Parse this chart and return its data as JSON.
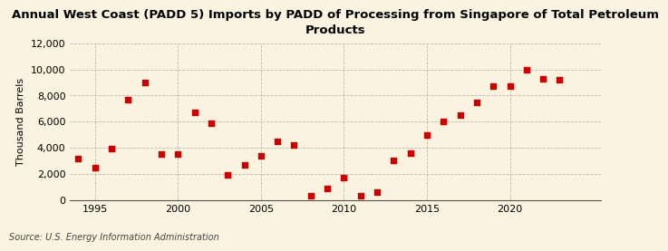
{
  "title": "Annual West Coast (PADD 5) Imports by PADD of Processing from Singapore of Total Petroleum\nProducts",
  "ylabel": "Thousand Barrels",
  "source": "Source: U.S. Energy Information Administration",
  "background_color": "#faf3e0",
  "plot_bg_color": "#faf3e0",
  "marker_color": "#cc0000",
  "years": [
    1994,
    1995,
    1996,
    1997,
    1998,
    1999,
    2000,
    2001,
    2002,
    2003,
    2004,
    2005,
    2006,
    2007,
    2008,
    2009,
    2010,
    2011,
    2012,
    2013,
    2014,
    2015,
    2016,
    2017,
    2018,
    2019,
    2020,
    2021,
    2022,
    2023
  ],
  "values": [
    3200,
    2500,
    3900,
    7700,
    9000,
    3500,
    3500,
    6700,
    5900,
    1900,
    2700,
    3400,
    4500,
    4200,
    350,
    850,
    1700,
    350,
    600,
    3000,
    3600,
    5000,
    6000,
    6500,
    7500,
    8700,
    8700,
    10000,
    9300,
    9200
  ],
  "ylim": [
    0,
    12000
  ],
  "yticks": [
    0,
    2000,
    4000,
    6000,
    8000,
    10000,
    12000
  ],
  "xlim": [
    1993.5,
    2025.5
  ],
  "xticks": [
    1995,
    2000,
    2005,
    2010,
    2015,
    2020
  ],
  "grid_color": "#aaaaaa",
  "title_fontsize": 9.5,
  "label_fontsize": 8,
  "tick_fontsize": 8,
  "source_fontsize": 7
}
